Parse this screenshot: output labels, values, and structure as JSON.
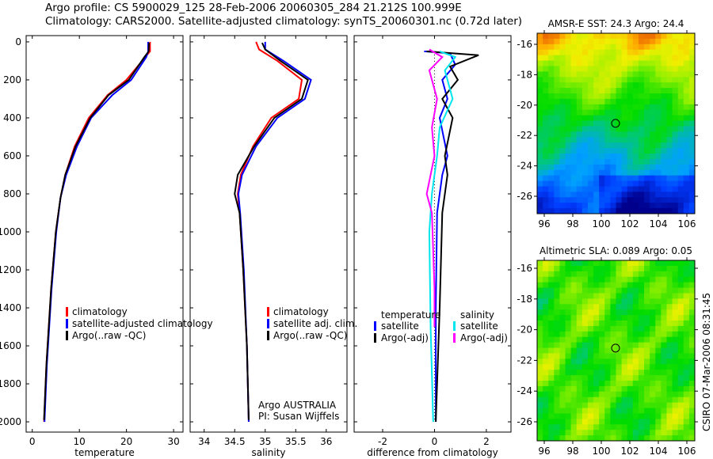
{
  "title": {
    "line1": "Argo profile: CS 5900029_125 28-Feb-2006 20060305_284 21.212S 100.999E",
    "line2": "Climatology: CARS2000. Satellite-adjusted climatology: synTS_20060301.nc (0.72d later)"
  },
  "colors": {
    "climatology": "#ff0000",
    "satellite": "#0000ff",
    "argo": "#000000",
    "sal_satellite": "#00e5ee",
    "sal_argo": "#ff00ff"
  },
  "chart_data": [
    {
      "type": "line",
      "id": "temperature",
      "xlabel": "temperature",
      "ylabel": "",
      "xlim": [
        -1.3,
        32
      ],
      "ylim": [
        2054,
        -33
      ],
      "xticks": [
        "0",
        "10",
        "20",
        "30"
      ],
      "xtick_values": [
        0,
        10,
        20,
        30
      ],
      "yticks": [
        "0",
        "200",
        "400",
        "600",
        "800",
        "1000",
        "1200",
        "1400",
        "1600",
        "1800",
        "2000"
      ],
      "legend": [
        "climatology",
        "satellite-adjusted climatology",
        "Argo(..raw -QC)"
      ],
      "series": [
        {
          "name": "climatology",
          "color": "#ff0000",
          "x": [
            25,
            25,
            24,
            20,
            16,
            12,
            9,
            7,
            6,
            5,
            4,
            3,
            2.5
          ],
          "y": [
            0,
            50,
            80,
            200,
            280,
            400,
            550,
            700,
            820,
            1000,
            1300,
            1700,
            2000
          ]
        },
        {
          "name": "satellite-adjusted climatology",
          "color": "#0000ff",
          "x": [
            24.6,
            24.6,
            24.2,
            21,
            17,
            12.5,
            9.5,
            7.2,
            6,
            5.1,
            4.1,
            3.1,
            2.6
          ],
          "y": [
            0,
            50,
            80,
            200,
            280,
            400,
            550,
            700,
            820,
            1000,
            1300,
            1700,
            2000
          ]
        },
        {
          "name": "Argo(..raw -QC)",
          "color": "#000000",
          "x": [
            24.8,
            24.7,
            23.8,
            20.5,
            16.2,
            12.3,
            9.2,
            7,
            6,
            5,
            4,
            3,
            2.5
          ],
          "y": [
            5,
            50,
            80,
            200,
            280,
            400,
            550,
            700,
            820,
            1000,
            1300,
            1700,
            1990
          ]
        }
      ]
    },
    {
      "type": "line",
      "id": "salinity",
      "xlabel": "salinity",
      "xlim": [
        33.77,
        36.34
      ],
      "ylim": [
        2054,
        -33
      ],
      "xticks": [
        "34",
        "34.5",
        "35",
        "35.5",
        "36"
      ],
      "xtick_values": [
        34,
        34.5,
        35,
        35.5,
        36
      ],
      "legend": [
        "climatology",
        "satellite adj. clim.",
        "Argo(..raw -QC)"
      ],
      "annotation": [
        "Argo AUSTRALIA",
        "PI: Susan Wijffels"
      ],
      "series": [
        {
          "name": "climatology",
          "color": "#ff0000",
          "x": [
            34.85,
            34.9,
            35.2,
            35.6,
            35.55,
            35.1,
            34.8,
            34.6,
            34.55,
            34.58,
            34.64,
            34.7,
            34.73
          ],
          "y": [
            0,
            40,
            100,
            200,
            300,
            400,
            550,
            700,
            800,
            900,
            1200,
            1600,
            2000
          ]
        },
        {
          "name": "satellite adj. clim.",
          "color": "#0000ff",
          "x": [
            35.0,
            35.0,
            35.3,
            35.75,
            35.65,
            35.2,
            34.85,
            34.62,
            34.56,
            34.59,
            34.65,
            34.7,
            34.73
          ],
          "y": [
            0,
            40,
            100,
            200,
            300,
            400,
            550,
            700,
            800,
            900,
            1200,
            1600,
            2000
          ]
        },
        {
          "name": "Argo(..raw -QC)",
          "color": "#000000",
          "x": [
            34.95,
            35.0,
            35.25,
            35.7,
            35.6,
            35.15,
            34.82,
            34.55,
            34.5,
            34.58,
            34.64,
            34.7,
            34.73
          ],
          "y": [
            5,
            40,
            100,
            200,
            300,
            400,
            550,
            700,
            800,
            900,
            1200,
            1600,
            1990
          ]
        }
      ]
    },
    {
      "type": "line",
      "id": "difference",
      "xlabel": "difference from climatology",
      "xlim": [
        -3.1,
        2.95
      ],
      "ylim": [
        2054,
        -33
      ],
      "xticks": [
        "-2",
        "0",
        "2"
      ],
      "xtick_values": [
        -2,
        0,
        2
      ],
      "legend_headers": [
        "temperature",
        "salinity"
      ],
      "legend": [
        "satellite",
        "Argo(-adj)",
        "satellite",
        "Argo(-adj)"
      ],
      "series": [
        {
          "name": "temperature satellite",
          "color": "#0000ff",
          "x": [
            -0.4,
            0.6,
            0.8,
            0.3,
            0.5,
            0.2,
            0.5,
            0.3,
            0.1,
            0.05,
            0.05
          ],
          "y": [
            50,
            60,
            120,
            200,
            300,
            400,
            600,
            700,
            900,
            1400,
            2000
          ]
        },
        {
          "name": "temperature Argo(-adj)",
          "color": "#000000",
          "x": [
            -0.3,
            1.7,
            0.6,
            0.9,
            0.3,
            0.7,
            0.4,
            0.5,
            0.3,
            0.2,
            0.05
          ],
          "y": [
            50,
            70,
            130,
            200,
            300,
            400,
            600,
            700,
            900,
            1400,
            2000
          ]
        },
        {
          "name": "salinity satellite",
          "color": "#00e5ee",
          "x": [
            0.2,
            0.8,
            0.4,
            0.7,
            0.2,
            0.1,
            -0.1,
            -0.2,
            -0.15,
            -0.05
          ],
          "y": [
            50,
            80,
            150,
            300,
            450,
            600,
            800,
            1000,
            1500,
            2000
          ]
        },
        {
          "name": "salinity Argo(-adj)",
          "color": "#ff00ff",
          "x": [
            -0.2,
            0.3,
            -0.2,
            0.1,
            -0.1,
            0,
            -0.3,
            -0.1,
            0,
            0
          ],
          "y": [
            40,
            80,
            150,
            300,
            450,
            600,
            800,
            900,
            1300,
            1500
          ]
        }
      ]
    },
    {
      "type": "heatmap",
      "id": "sst_map",
      "title": "AMSR-E SST: 24.3 Argo: 24.4",
      "xticks": [
        "96",
        "98",
        "100",
        "102",
        "104",
        "106"
      ],
      "yticks": [
        "-16",
        "-18",
        "-20",
        "-22",
        "-24",
        "-26"
      ],
      "argo_position": {
        "lon": 101.0,
        "lat": -21.2
      }
    },
    {
      "type": "heatmap",
      "id": "sla_map",
      "title": "Altimetric SLA: 0.089 Argo: 0.05",
      "xticks": [
        "96",
        "98",
        "100",
        "102",
        "104",
        "106"
      ],
      "yticks": [
        "-16",
        "-18",
        "-20",
        "-22",
        "-24",
        "-26"
      ],
      "argo_position": {
        "lon": 101.0,
        "lat": -21.2
      }
    }
  ],
  "footer": {
    "stamp": "CSIRO 07-Mar-2006 08:31:45"
  }
}
